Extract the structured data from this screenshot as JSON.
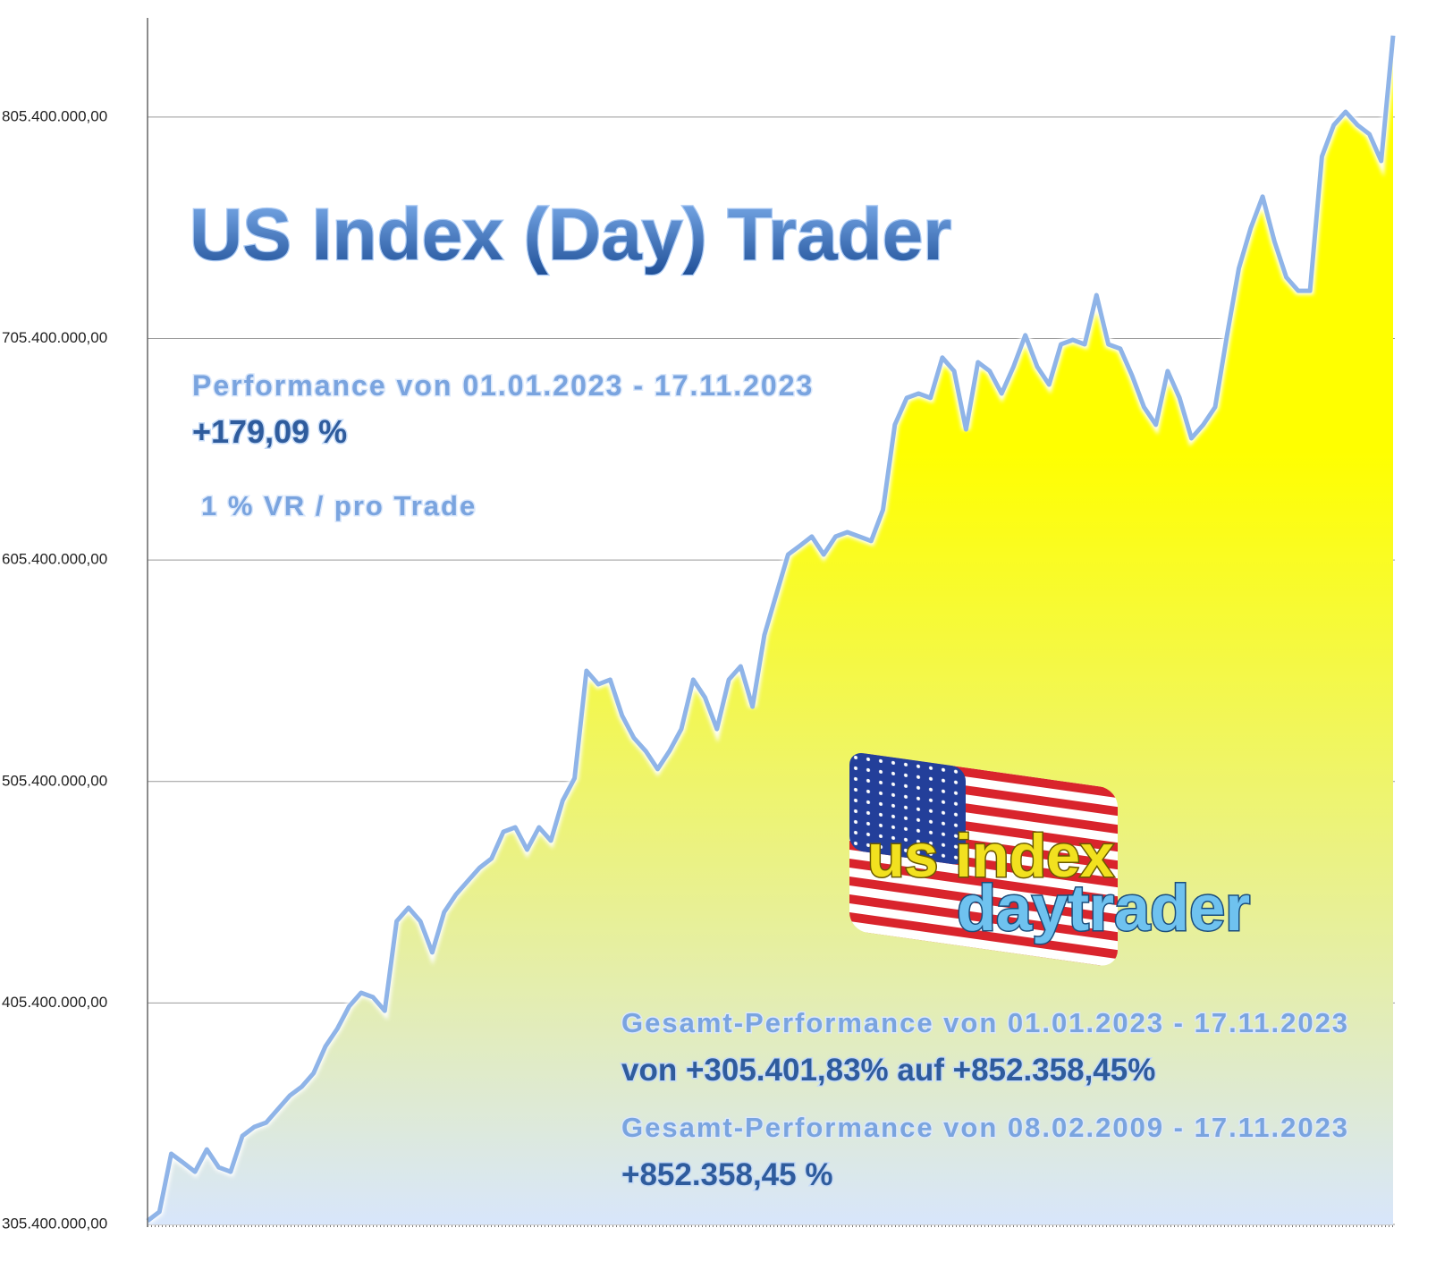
{
  "chart_data": {
    "type": "area",
    "title": "US Index (Day) Trader",
    "annotations": {
      "period": "Performance  von  01.01.2023 - 17.11.2023",
      "performance": "+179,09 %",
      "risk": "1 % VR / pro Trade",
      "total_period_1": "Gesamt-Performance  von  01.01.2023 - 17.11.2023",
      "total_change": "von +305.401,83% auf  +852.358,45%",
      "total_period_2": "Gesamt-Performance  von  08.02.2009 - 17.11.2023",
      "total_performance": "+852.358,45 %",
      "logo_top": "us index",
      "logo_bottom": "daytrader"
    },
    "values": [
      307000000,
      311100000,
      337300000,
      333300000,
      329200000,
      339300000,
      331200000,
      329200000,
      345400000,
      349400000,
      351400000,
      357500000,
      363600000,
      367600000,
      373700000,
      385800000,
      393800000,
      403900000,
      410000000,
      408000000,
      401900000,
      442300000,
      448400000,
      442300000,
      428200000,
      446400000,
      454400000,
      460500000,
      466500000,
      470600000,
      482700000,
      484700000,
      474600000,
      484700000,
      478700000,
      496800000,
      506900000,
      555400000,
      549300000,
      551400000,
      535200000,
      525100000,
      519100000,
      511000000,
      519100000,
      529100000,
      551400000,
      543300000,
      529100000,
      551400000,
      557400000,
      539200000,
      571600000,
      589700000,
      607900000,
      611900000,
      616000000,
      607900000,
      616000000,
      618000000,
      616000000,
      614000000,
      628100000,
      666500000,
      678600000,
      680600000,
      678600000,
      696800000,
      690700000,
      664400000,
      694700000,
      690700000,
      680600000,
      692700000,
      706900000,
      692700000,
      684600000,
      702800000,
      704800000,
      702800000,
      725000000,
      702800000,
      700800000,
      688700000,
      674500000,
      666500000,
      690700000,
      678600000,
      660400000,
      666500000,
      674500000,
      706900000,
      737100000,
      755300000,
      769500000,
      749300000,
      733100000,
      727000000,
      727000000,
      787600000,
      801800000,
      807800000,
      801800000,
      797700000,
      785600000,
      842200000
    ],
    "line_color": "#8fb4e8",
    "fill_top": "#ffff00",
    "fill_bottom": "#d8e6fb",
    "ylim": [
      305400000,
      850200000
    ],
    "yticks": [
      {
        "value": 305400000,
        "label": "305.400.000,00"
      },
      {
        "value": 405400000,
        "label": "405.400.000,00"
      },
      {
        "value": 505400000,
        "label": "505.400.000,00"
      },
      {
        "value": 605400000,
        "label": "605.400.000,00"
      },
      {
        "value": 705400000,
        "label": "705.400.000,00"
      },
      {
        "value": 805400000,
        "label": "805.400.000,00"
      }
    ],
    "grid": true
  }
}
